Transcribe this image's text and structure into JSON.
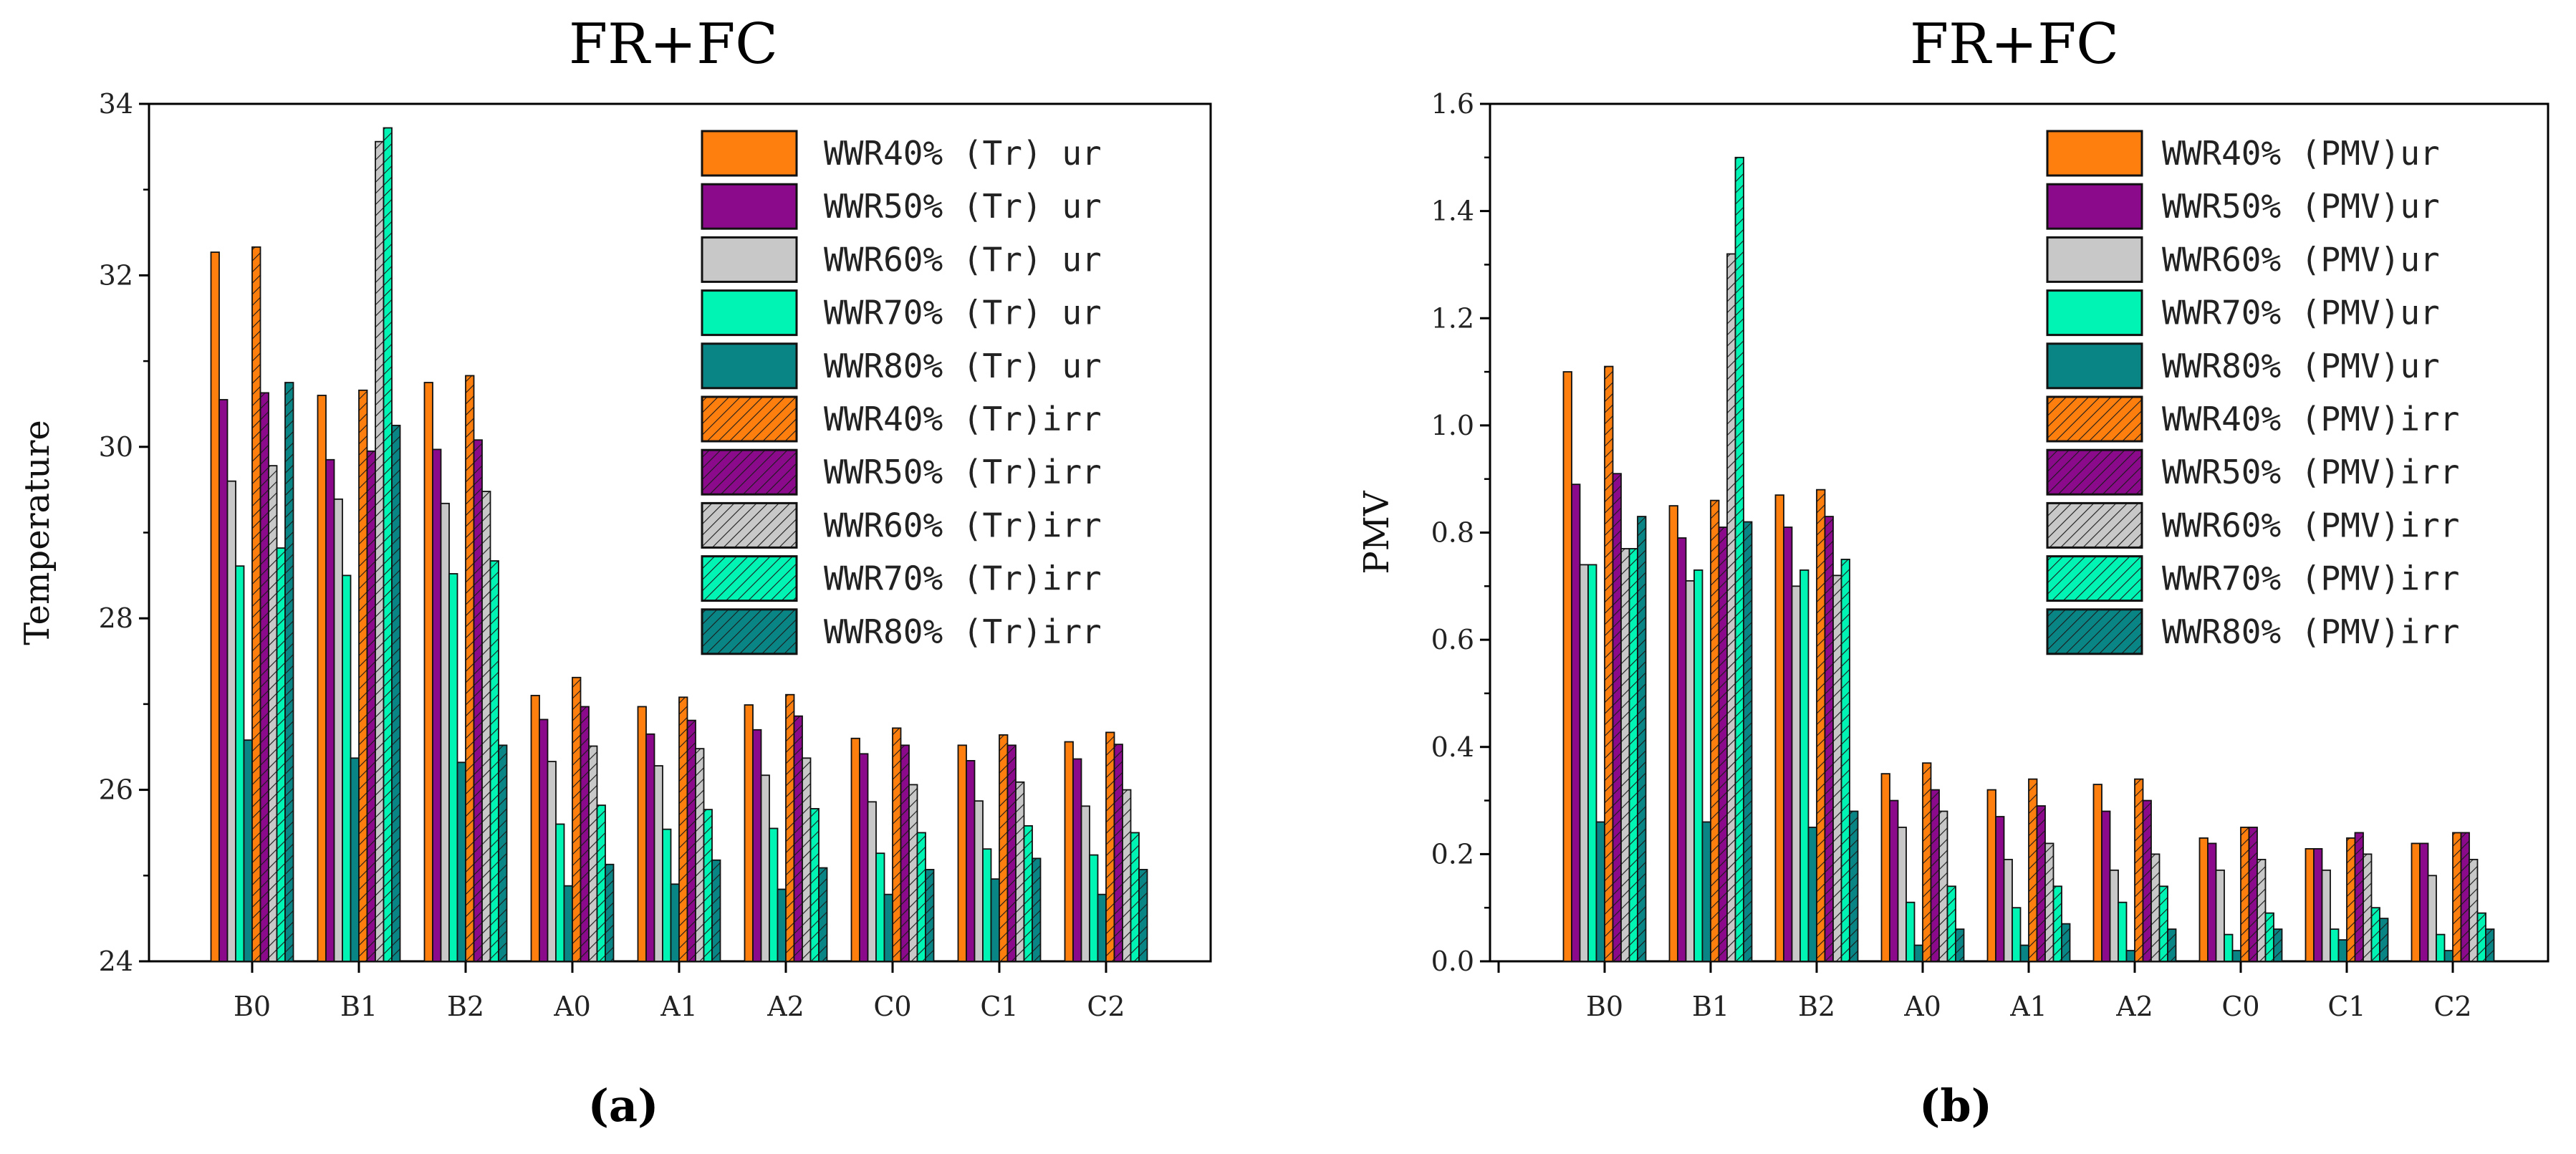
{
  "colors": {
    "WWR40": "#FF7F0E",
    "WWR50": "#8B0A8B",
    "WWR60": "#C8C8C8",
    "WWR70": "#00F5B5",
    "WWR80": "#0A8585"
  },
  "chart_data": [
    {
      "type": "bar",
      "title": "FR+FC",
      "ylabel": "Temperature",
      "sublabel": "(a)",
      "categories": [
        "B0",
        "B1",
        "B2",
        "A0",
        "A1",
        "A2",
        "C0",
        "C1",
        "C2"
      ],
      "ylim": [
        24,
        34
      ],
      "yticks": [
        24,
        26,
        28,
        30,
        32,
        34
      ],
      "ytick_labels": [
        "24",
        "26",
        "28",
        "30",
        "32",
        "34"
      ],
      "series": [
        {
          "name": "WWR40% (Tr) ur",
          "color_key": "WWR40",
          "hatch": false,
          "values": [
            32.27,
            30.6,
            30.75,
            27.1,
            26.97,
            26.99,
            26.6,
            26.52,
            26.56
          ]
        },
        {
          "name": "WWR50% (Tr) ur",
          "color_key": "WWR50",
          "hatch": false,
          "values": [
            30.55,
            29.85,
            29.97,
            26.82,
            26.65,
            26.7,
            26.42,
            26.34,
            26.36
          ]
        },
        {
          "name": "WWR60% (Tr) ur",
          "color_key": "WWR60",
          "hatch": false,
          "values": [
            29.6,
            29.39,
            29.34,
            26.33,
            26.28,
            26.17,
            25.86,
            25.87,
            25.81
          ]
        },
        {
          "name": "WWR70% (Tr) ur",
          "color_key": "WWR70",
          "hatch": false,
          "values": [
            28.61,
            28.5,
            28.52,
            25.6,
            25.54,
            25.55,
            25.26,
            25.31,
            25.24
          ]
        },
        {
          "name": "WWR80% (Tr) ur",
          "color_key": "WWR80",
          "hatch": false,
          "values": [
            26.58,
            26.37,
            26.32,
            24.88,
            24.9,
            24.84,
            24.78,
            24.96,
            24.78
          ]
        },
        {
          "name": "WWR40% (Tr)irr",
          "color_key": "WWR40",
          "hatch": true,
          "values": [
            32.33,
            30.66,
            30.83,
            27.31,
            27.08,
            27.11,
            26.72,
            26.64,
            26.67
          ]
        },
        {
          "name": "WWR50% (Tr)irr",
          "color_key": "WWR50",
          "hatch": true,
          "values": [
            30.63,
            29.95,
            30.08,
            26.97,
            26.81,
            26.86,
            26.52,
            26.52,
            26.53
          ]
        },
        {
          "name": "WWR60% (Tr)irr",
          "color_key": "WWR60",
          "hatch": true,
          "values": [
            29.78,
            33.56,
            29.48,
            26.51,
            26.48,
            26.37,
            26.06,
            26.09,
            26.0
          ]
        },
        {
          "name": "WWR70% (Tr)irr",
          "color_key": "WWR70",
          "hatch": true,
          "values": [
            28.82,
            33.72,
            28.67,
            25.82,
            25.77,
            25.78,
            25.5,
            25.58,
            25.5
          ]
        },
        {
          "name": "WWR80% (Tr)irr",
          "color_key": "WWR80",
          "hatch": true,
          "values": [
            30.75,
            30.25,
            26.52,
            25.13,
            25.18,
            25.09,
            25.07,
            25.2,
            25.07
          ]
        }
      ]
    },
    {
      "type": "bar",
      "title": "FR+FC",
      "ylabel": "PMV",
      "sublabel": "(b)",
      "categories": [
        "B0",
        "B1",
        "B2",
        "A0",
        "A1",
        "A2",
        "C0",
        "C1",
        "C2"
      ],
      "ylim": [
        0.0,
        1.6
      ],
      "yticks": [
        0.0,
        0.2,
        0.4,
        0.6,
        0.8,
        1.0,
        1.2,
        1.4,
        1.6
      ],
      "ytick_labels": [
        "0.0",
        "0.2",
        "0.4",
        "0.6",
        "0.8",
        "1.0",
        "1.2",
        "1.4",
        "1.6"
      ],
      "series": [
        {
          "name": "WWR40% (PMV)ur",
          "color_key": "WWR40",
          "hatch": false,
          "values": [
            1.1,
            0.85,
            0.87,
            0.35,
            0.32,
            0.33,
            0.23,
            0.21,
            0.22
          ]
        },
        {
          "name": "WWR50% (PMV)ur",
          "color_key": "WWR50",
          "hatch": false,
          "values": [
            0.89,
            0.79,
            0.81,
            0.3,
            0.27,
            0.28,
            0.22,
            0.21,
            0.22
          ]
        },
        {
          "name": "WWR60% (PMV)ur",
          "color_key": "WWR60",
          "hatch": false,
          "values": [
            0.74,
            0.71,
            0.7,
            0.25,
            0.19,
            0.17,
            0.17,
            0.17,
            0.16
          ]
        },
        {
          "name": "WWR70% (PMV)ur",
          "color_key": "WWR70",
          "hatch": false,
          "values": [
            0.74,
            0.73,
            0.73,
            0.11,
            0.1,
            0.11,
            0.05,
            0.06,
            0.05
          ]
        },
        {
          "name": "WWR80% (PMV)ur",
          "color_key": "WWR80",
          "hatch": false,
          "values": [
            0.26,
            0.26,
            0.25,
            0.03,
            0.03,
            0.02,
            0.02,
            0.04,
            0.02
          ]
        },
        {
          "name": "WWR40% (PMV)irr",
          "color_key": "WWR40",
          "hatch": true,
          "values": [
            1.11,
            0.86,
            0.88,
            0.37,
            0.34,
            0.34,
            0.25,
            0.23,
            0.24
          ]
        },
        {
          "name": "WWR50% (PMV)irr",
          "color_key": "WWR50",
          "hatch": true,
          "values": [
            0.91,
            0.81,
            0.83,
            0.32,
            0.29,
            0.3,
            0.25,
            0.24,
            0.24
          ]
        },
        {
          "name": "WWR60% (PMV)irr",
          "color_key": "WWR60",
          "hatch": true,
          "values": [
            0.77,
            1.32,
            0.72,
            0.28,
            0.22,
            0.2,
            0.19,
            0.2,
            0.19
          ]
        },
        {
          "name": "WWR70% (PMV)irr",
          "color_key": "WWR70",
          "hatch": true,
          "values": [
            0.77,
            1.5,
            0.75,
            0.14,
            0.14,
            0.14,
            0.09,
            0.1,
            0.09
          ]
        },
        {
          "name": "WWR80% (PMV)irr",
          "color_key": "WWR80",
          "hatch": true,
          "values": [
            0.83,
            0.82,
            0.28,
            0.06,
            0.07,
            0.06,
            0.06,
            0.08,
            0.06
          ]
        }
      ]
    }
  ]
}
